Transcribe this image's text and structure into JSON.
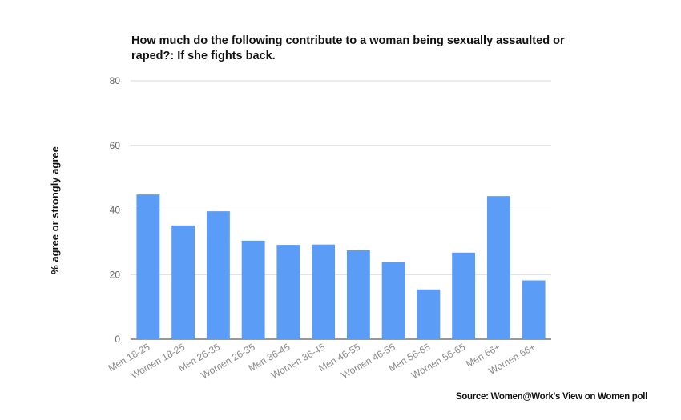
{
  "chart_data": {
    "type": "bar",
    "title": "How much do the following contribute to a woman being sexually assaulted or raped?: If she fights back.",
    "ylabel": "% agree or strongly agree",
    "xlabel": "",
    "ylim": [
      0,
      80
    ],
    "yticks": [
      0,
      20,
      40,
      60,
      80
    ],
    "grid": true,
    "bar_color": "#5b9cf6",
    "categories": [
      "Men 18-25",
      "Women 18-25",
      "Men 26-35",
      "Women 26-35",
      "Men 36-45",
      "Women 36-45",
      "Men 46-55",
      "Women 46-55",
      "Men 56-65",
      "Women 56-65",
      "Men 66+",
      "Women 66+"
    ],
    "values": [
      44.8,
      35.2,
      39.6,
      30.5,
      29.2,
      29.3,
      27.5,
      23.8,
      15.4,
      26.8,
      44.3,
      18.2
    ]
  },
  "source": "Source: Women@Work's View on Women poll"
}
